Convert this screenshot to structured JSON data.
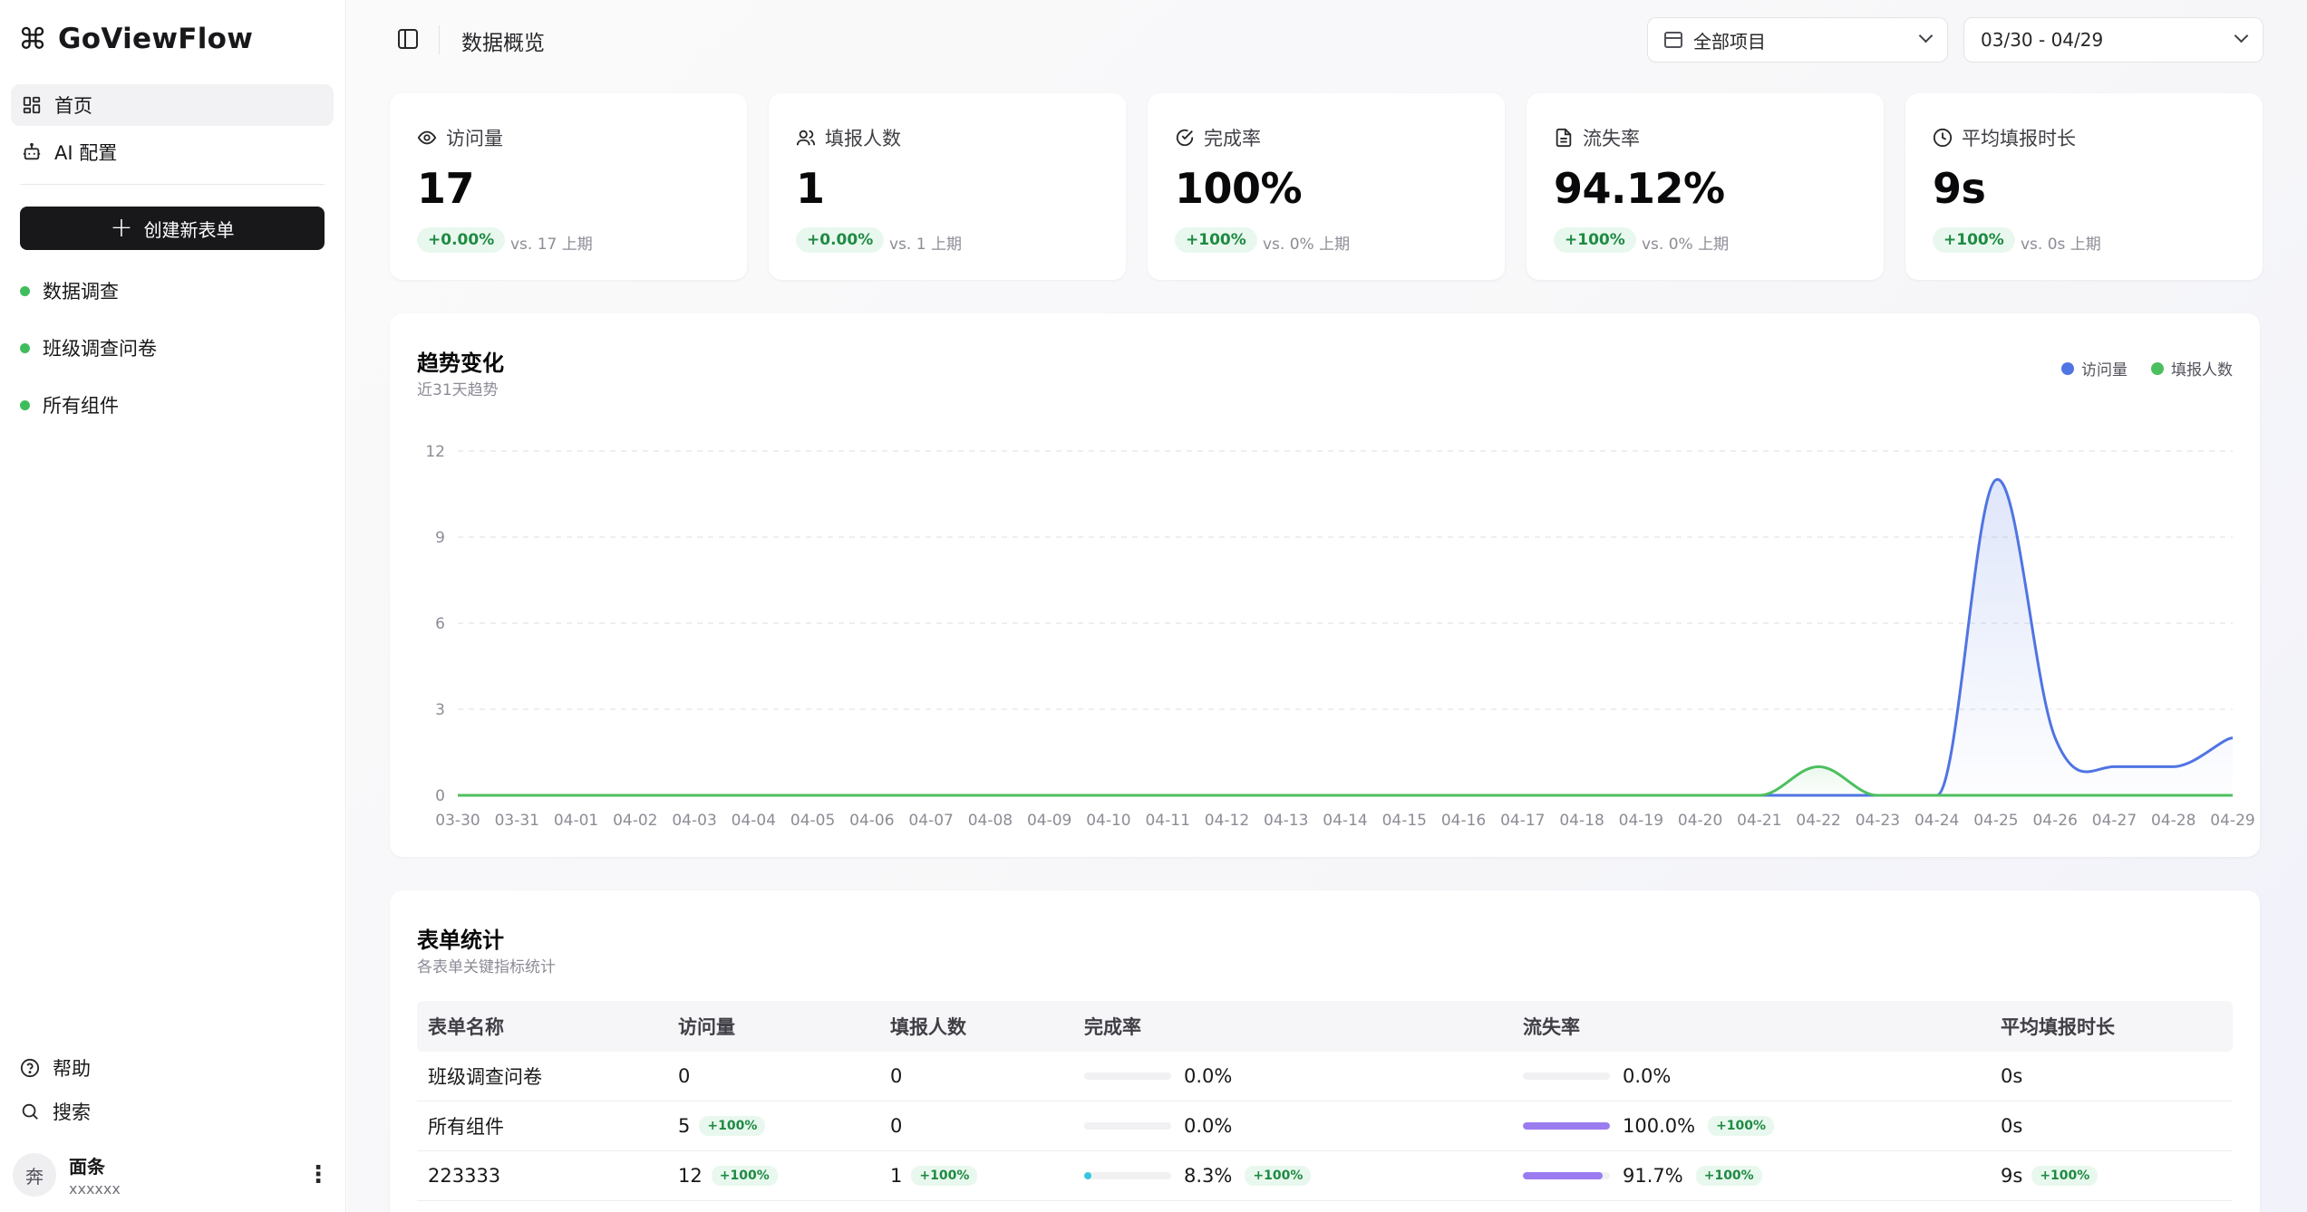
{
  "app": {
    "name": "GoViewFlow"
  },
  "sidebar": {
    "nav": [
      {
        "label": "首页",
        "icon": "dashboard-icon"
      },
      {
        "label": "AI 配置",
        "icon": "bot-icon"
      }
    ],
    "create_label": "创建新表单",
    "forms": [
      {
        "label": "数据调查",
        "status_color": "#3fbd5d"
      },
      {
        "label": "班级调查问卷",
        "status_color": "#3fbd5d"
      },
      {
        "label": "所有组件",
        "status_color": "#3fbd5d"
      }
    ],
    "help_label": "帮助",
    "search_label": "搜索",
    "user": {
      "avatar_text": "奔",
      "name": "面条",
      "email": "xxxxxx"
    }
  },
  "header": {
    "title": "数据概览",
    "project_select": "全部项目",
    "date_range": "03/30 - 04/29"
  },
  "kpis": [
    {
      "label": "访问量",
      "icon": "eye-icon",
      "value": "17",
      "change": "+0.00%",
      "compare": "vs. 17 上期"
    },
    {
      "label": "填报人数",
      "icon": "users-icon",
      "value": "1",
      "change": "+0.00%",
      "compare": "vs. 1 上期"
    },
    {
      "label": "完成率",
      "icon": "check-circle-icon",
      "value": "100%",
      "change": "+100%",
      "compare": "vs. 0% 上期"
    },
    {
      "label": "流失率",
      "icon": "file-icon",
      "value": "94.12%",
      "change": "+100%",
      "compare": "vs. 0% 上期"
    },
    {
      "label": "平均填报时长",
      "icon": "clock-icon",
      "value": "9s",
      "change": "+100%",
      "compare": "vs. 0s 上期"
    }
  ],
  "trend": {
    "title": "趋势变化",
    "subtitle": "近31天趋势"
  },
  "chart_data": {
    "type": "area",
    "x": [
      "03-30",
      "03-31",
      "04-01",
      "04-02",
      "04-03",
      "04-04",
      "04-05",
      "04-06",
      "04-07",
      "04-08",
      "04-09",
      "04-10",
      "04-11",
      "04-12",
      "04-13",
      "04-14",
      "04-15",
      "04-16",
      "04-17",
      "04-18",
      "04-19",
      "04-20",
      "04-21",
      "04-22",
      "04-23",
      "04-24",
      "04-25",
      "04-26",
      "04-27",
      "04-28",
      "04-29"
    ],
    "ylim": [
      0,
      12
    ],
    "yticks": [
      0,
      3,
      6,
      9,
      12
    ],
    "grid": true,
    "legend_position": "top-right",
    "series": [
      {
        "name": "访问量",
        "color": "#4f74e3",
        "values": [
          0,
          0,
          0,
          0,
          0,
          0,
          0,
          0,
          0,
          0,
          0,
          0,
          0,
          0,
          0,
          0,
          0,
          0,
          0,
          0,
          0,
          0,
          0,
          0,
          0,
          0,
          11,
          2,
          1,
          1,
          2
        ]
      },
      {
        "name": "填报人数",
        "color": "#4cbf5f",
        "values": [
          0,
          0,
          0,
          0,
          0,
          0,
          0,
          0,
          0,
          0,
          0,
          0,
          0,
          0,
          0,
          0,
          0,
          0,
          0,
          0,
          0,
          0,
          0,
          1,
          0,
          0,
          0,
          0,
          0,
          0,
          0
        ]
      }
    ]
  },
  "table": {
    "title": "表单统计",
    "subtitle": "各表单关键指标统计",
    "headers": [
      "表单名称",
      "访问量",
      "填报人数",
      "完成率",
      "流失率",
      "平均填报时长"
    ],
    "rows": [
      {
        "name": "班级调查问卷",
        "visits": "0",
        "visits_change": "",
        "submits": "0",
        "submits_change": "",
        "completion": "0.0%",
        "completion_frac": 0,
        "completion_change": "",
        "churn": "0.0%",
        "churn_frac": 0,
        "churn_change": "",
        "duration": "0s",
        "duration_change": ""
      },
      {
        "name": "所有组件",
        "visits": "5",
        "visits_change": "+100%",
        "submits": "0",
        "submits_change": "",
        "completion": "0.0%",
        "completion_frac": 0,
        "completion_change": "",
        "churn": "100.0%",
        "churn_frac": 1.0,
        "churn_change": "+100%",
        "duration": "0s",
        "duration_change": ""
      },
      {
        "name": "223333",
        "visits": "12",
        "visits_change": "+100%",
        "submits": "1",
        "submits_change": "+100%",
        "completion": "8.3%",
        "completion_frac": 0.083,
        "completion_change": "+100%",
        "churn": "91.7%",
        "churn_frac": 0.917,
        "churn_change": "+100%",
        "duration": "9s",
        "duration_change": "+100%"
      }
    ],
    "colors": {
      "completion": "#36c5de",
      "churn": "#9b7cf0"
    }
  }
}
